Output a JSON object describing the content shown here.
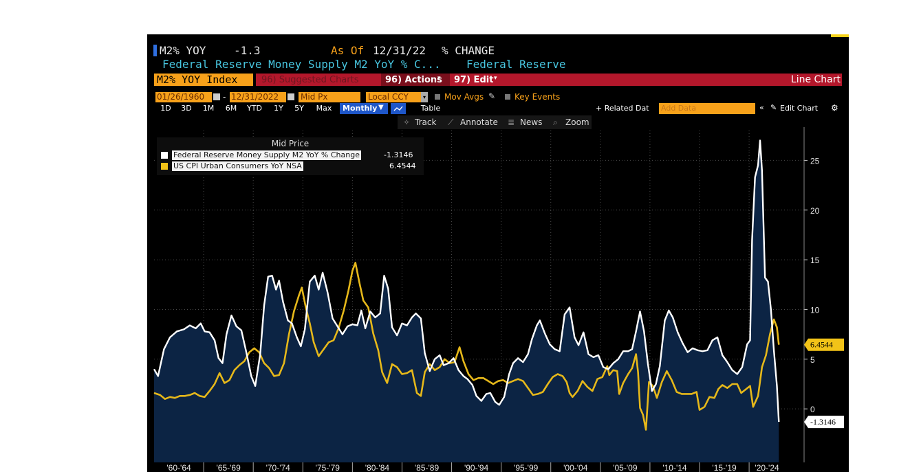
{
  "header": {
    "ticker": "M2% YOY",
    "value": "-1.3",
    "as_of_label": "As Of",
    "as_of_date": "12/31/22",
    "change_label": "% CHANGE",
    "description": "Federal Reserve Money Supply M2 YoY % C...",
    "source": "Federal Reserve"
  },
  "toolbar": {
    "index_field": "M2% YOY Index",
    "suggested_charts": "96) Suggested Charts",
    "actions": "96) Actions",
    "edit": "97) Edit",
    "chart_type": "Line Chart",
    "start_date": "01/26/1960",
    "end_date": "12/31/2022",
    "price_field": "Mid Px",
    "currency": "Local CCY",
    "mov_avgs": "Mov Avgs",
    "key_events": "Key Events",
    "periods": [
      "1D",
      "3D",
      "1M",
      "6M",
      "YTD",
      "1Y",
      "5Y",
      "Max"
    ],
    "frequency": "Monthly",
    "table": "Table",
    "related_data": "+ Related Dat",
    "add_data": "Add Data",
    "edit_chart": "Edit Chart",
    "track": "Track",
    "annotate": "Annotate",
    "news": "News",
    "zoom": "Zoom"
  },
  "legend": {
    "title": "Mid Price",
    "items": [
      {
        "label": "Federal Reserve Money Supply M2 YoY % Change",
        "value": "-1.3146",
        "color": "#ffffff"
      },
      {
        "label": "US CPI Urban Consumers YoY NSA",
        "value": "6.4544",
        "color": "#f2c318"
      }
    ]
  },
  "colors": {
    "background": "#000000",
    "area_fill": "#0c2444",
    "m2_line": "#ffffff",
    "cpi_line": "#e6b81a",
    "accent_orange": "#f7a11a",
    "accent_red": "#b3172b"
  },
  "chart_data": {
    "type": "line",
    "title": "Mid Price",
    "x_axis_labels": [
      "'60-'64",
      "'65-'69",
      "'70-'74",
      "'75-'79",
      "'80-'84",
      "'85-'89",
      "'90-'94",
      "'95-'99",
      "'00-'04",
      "'05-'09",
      "'10-'14",
      "'15-'19",
      "'20-'24"
    ],
    "y_ticks": [
      0,
      5,
      10,
      15,
      20,
      25
    ],
    "ylim": [
      -4,
      28
    ],
    "xlim": [
      1960.0,
      2023.6
    ],
    "grid": true,
    "last_value_labels": [
      "6.4544",
      "-1.3146"
    ],
    "series": [
      {
        "name": "Federal Reserve Money Supply M2 YoY % Change",
        "color": "#ffffff",
        "fill": true,
        "last_value": -1.3146,
        "points": [
          [
            1960.0,
            4.0
          ],
          [
            1960.4,
            3.3
          ],
          [
            1961.0,
            6.0
          ],
          [
            1961.6,
            7.2
          ],
          [
            1962.3,
            7.8
          ],
          [
            1963.0,
            8.0
          ],
          [
            1963.6,
            8.4
          ],
          [
            1964.2,
            8.1
          ],
          [
            1964.7,
            8.6
          ],
          [
            1965.1,
            7.8
          ],
          [
            1965.6,
            7.7
          ],
          [
            1966.1,
            6.9
          ],
          [
            1966.5,
            5.1
          ],
          [
            1966.9,
            4.6
          ],
          [
            1967.3,
            7.5
          ],
          [
            1967.8,
            9.4
          ],
          [
            1968.3,
            8.3
          ],
          [
            1968.8,
            7.9
          ],
          [
            1969.3,
            5.7
          ],
          [
            1969.8,
            3.3
          ],
          [
            1970.2,
            2.3
          ],
          [
            1970.7,
            5.5
          ],
          [
            1971.1,
            10.4
          ],
          [
            1971.5,
            13.3
          ],
          [
            1971.9,
            13.4
          ],
          [
            1972.3,
            12.0
          ],
          [
            1972.6,
            12.9
          ],
          [
            1973.0,
            10.8
          ],
          [
            1973.5,
            8.9
          ],
          [
            1973.9,
            8.6
          ],
          [
            1974.4,
            7.2
          ],
          [
            1974.8,
            6.3
          ],
          [
            1975.2,
            8.0
          ],
          [
            1975.7,
            12.8
          ],
          [
            1976.2,
            13.4
          ],
          [
            1976.6,
            12.0
          ],
          [
            1977.0,
            13.7
          ],
          [
            1977.5,
            11.7
          ],
          [
            1978.0,
            9.1
          ],
          [
            1978.5,
            8.3
          ],
          [
            1979.0,
            7.5
          ],
          [
            1979.5,
            8.3
          ],
          [
            1980.0,
            8.5
          ],
          [
            1980.5,
            8.4
          ],
          [
            1980.9,
            9.9
          ],
          [
            1981.3,
            8.1
          ],
          [
            1981.8,
            9.8
          ],
          [
            1982.3,
            9.2
          ],
          [
            1982.8,
            9.6
          ],
          [
            1983.2,
            13.4
          ],
          [
            1983.6,
            12.1
          ],
          [
            1984.0,
            8.2
          ],
          [
            1984.5,
            7.4
          ],
          [
            1985.0,
            8.6
          ],
          [
            1985.5,
            8.4
          ],
          [
            1986.0,
            9.2
          ],
          [
            1986.4,
            9.6
          ],
          [
            1986.9,
            9.1
          ],
          [
            1987.3,
            5.6
          ],
          [
            1987.8,
            3.8
          ],
          [
            1988.3,
            5.0
          ],
          [
            1988.8,
            5.4
          ],
          [
            1989.2,
            4.4
          ],
          [
            1989.7,
            4.6
          ],
          [
            1990.2,
            5.1
          ],
          [
            1990.7,
            3.9
          ],
          [
            1991.2,
            3.3
          ],
          [
            1991.6,
            3.0
          ],
          [
            1992.1,
            2.4
          ],
          [
            1992.5,
            1.3
          ],
          [
            1993.0,
            0.8
          ],
          [
            1993.5,
            1.5
          ],
          [
            1993.9,
            1.6
          ],
          [
            1994.4,
            0.7
          ],
          [
            1994.8,
            0.4
          ],
          [
            1995.3,
            1.2
          ],
          [
            1995.8,
            3.5
          ],
          [
            1996.2,
            4.6
          ],
          [
            1996.7,
            5.1
          ],
          [
            1997.2,
            4.7
          ],
          [
            1997.7,
            5.5
          ],
          [
            1998.1,
            7.0
          ],
          [
            1998.6,
            8.4
          ],
          [
            1998.9,
            8.9
          ],
          [
            1999.4,
            7.6
          ],
          [
            1999.9,
            6.5
          ],
          [
            2000.4,
            6.0
          ],
          [
            2000.9,
            5.8
          ],
          [
            2001.4,
            9.5
          ],
          [
            2001.9,
            10.2
          ],
          [
            2002.4,
            7.2
          ],
          [
            2002.8,
            6.4
          ],
          [
            2003.3,
            7.7
          ],
          [
            2003.8,
            5.5
          ],
          [
            2004.3,
            5.2
          ],
          [
            2004.8,
            5.4
          ],
          [
            2005.3,
            4.2
          ],
          [
            2005.8,
            4.0
          ],
          [
            2006.3,
            4.6
          ],
          [
            2006.8,
            5.0
          ],
          [
            2007.3,
            5.8
          ],
          [
            2007.8,
            5.8
          ],
          [
            2008.2,
            6.0
          ],
          [
            2008.6,
            7.8
          ],
          [
            2009.0,
            9.8
          ],
          [
            2009.4,
            7.8
          ],
          [
            2009.8,
            4.5
          ],
          [
            2010.2,
            1.8
          ],
          [
            2010.6,
            2.5
          ],
          [
            2011.0,
            4.3
          ],
          [
            2011.5,
            8.9
          ],
          [
            2011.9,
            9.9
          ],
          [
            2012.3,
            9.2
          ],
          [
            2012.8,
            7.7
          ],
          [
            2013.3,
            6.6
          ],
          [
            2013.8,
            5.7
          ],
          [
            2014.3,
            6.1
          ],
          [
            2014.8,
            5.9
          ],
          [
            2015.3,
            5.8
          ],
          [
            2015.8,
            5.9
          ],
          [
            2016.3,
            6.9
          ],
          [
            2016.8,
            7.2
          ],
          [
            2017.3,
            5.4
          ],
          [
            2017.8,
            4.7
          ],
          [
            2018.3,
            3.9
          ],
          [
            2018.8,
            3.5
          ],
          [
            2019.3,
            4.2
          ],
          [
            2019.8,
            6.5
          ],
          [
            2020.1,
            6.9
          ],
          [
            2020.3,
            17.0
          ],
          [
            2020.6,
            23.3
          ],
          [
            2020.9,
            24.5
          ],
          [
            2021.1,
            27.0
          ],
          [
            2021.3,
            24.0
          ],
          [
            2021.6,
            13.2
          ],
          [
            2021.9,
            12.8
          ],
          [
            2022.2,
            10.0
          ],
          [
            2022.5,
            5.9
          ],
          [
            2022.8,
            2.3
          ],
          [
            2023.0,
            -1.3146
          ]
        ]
      },
      {
        "name": "US CPI Urban Consumers YoY NSA",
        "color": "#e6b81a",
        "fill": false,
        "last_value": 6.4544,
        "points": [
          [
            1960.0,
            1.6
          ],
          [
            1960.6,
            1.4
          ],
          [
            1961.1,
            1.0
          ],
          [
            1961.6,
            1.2
          ],
          [
            1962.1,
            1.1
          ],
          [
            1962.6,
            1.3
          ],
          [
            1963.1,
            1.3
          ],
          [
            1963.6,
            1.4
          ],
          [
            1964.1,
            1.6
          ],
          [
            1964.6,
            1.3
          ],
          [
            1965.1,
            1.2
          ],
          [
            1965.6,
            1.8
          ],
          [
            1966.1,
            2.5
          ],
          [
            1966.6,
            3.6
          ],
          [
            1967.1,
            2.6
          ],
          [
            1967.6,
            2.9
          ],
          [
            1968.1,
            3.9
          ],
          [
            1968.6,
            4.4
          ],
          [
            1969.1,
            4.8
          ],
          [
            1969.6,
            5.7
          ],
          [
            1970.1,
            6.1
          ],
          [
            1970.6,
            5.7
          ],
          [
            1971.1,
            4.6
          ],
          [
            1971.6,
            4.1
          ],
          [
            1972.1,
            3.3
          ],
          [
            1972.6,
            3.4
          ],
          [
            1973.1,
            4.6
          ],
          [
            1973.6,
            7.5
          ],
          [
            1974.1,
            9.8
          ],
          [
            1974.6,
            11.4
          ],
          [
            1974.9,
            12.2
          ],
          [
            1975.3,
            10.2
          ],
          [
            1975.7,
            8.6
          ],
          [
            1976.1,
            6.7
          ],
          [
            1976.6,
            5.3
          ],
          [
            1977.1,
            6.0
          ],
          [
            1977.6,
            6.7
          ],
          [
            1978.1,
            6.9
          ],
          [
            1978.6,
            8.1
          ],
          [
            1979.1,
            9.8
          ],
          [
            1979.6,
            11.9
          ],
          [
            1980.0,
            13.9
          ],
          [
            1980.3,
            14.7
          ],
          [
            1980.7,
            12.7
          ],
          [
            1981.1,
            10.9
          ],
          [
            1981.6,
            10.2
          ],
          [
            1982.1,
            7.6
          ],
          [
            1982.6,
            5.9
          ],
          [
            1983.0,
            3.7
          ],
          [
            1983.5,
            2.6
          ],
          [
            1984.0,
            4.5
          ],
          [
            1984.5,
            4.2
          ],
          [
            1985.0,
            3.5
          ],
          [
            1985.5,
            3.6
          ],
          [
            1986.0,
            3.9
          ],
          [
            1986.5,
            1.6
          ],
          [
            1986.9,
            1.3
          ],
          [
            1987.3,
            3.7
          ],
          [
            1987.8,
            4.5
          ],
          [
            1988.3,
            3.9
          ],
          [
            1988.8,
            4.2
          ],
          [
            1989.3,
            5.0
          ],
          [
            1989.8,
            4.6
          ],
          [
            1990.3,
            4.7
          ],
          [
            1990.8,
            6.2
          ],
          [
            1991.2,
            4.8
          ],
          [
            1991.7,
            3.5
          ],
          [
            1992.2,
            2.9
          ],
          [
            1992.7,
            3.1
          ],
          [
            1993.2,
            3.1
          ],
          [
            1993.7,
            2.8
          ],
          [
            1994.2,
            2.5
          ],
          [
            1994.7,
            2.8
          ],
          [
            1995.2,
            2.9
          ],
          [
            1995.7,
            2.6
          ],
          [
            1996.2,
            2.8
          ],
          [
            1996.7,
            3.0
          ],
          [
            1997.2,
            2.8
          ],
          [
            1997.7,
            2.1
          ],
          [
            1998.2,
            1.4
          ],
          [
            1998.7,
            1.5
          ],
          [
            1999.2,
            1.7
          ],
          [
            1999.7,
            2.5
          ],
          [
            2000.2,
            3.2
          ],
          [
            2000.7,
            3.5
          ],
          [
            2001.2,
            3.3
          ],
          [
            2001.6,
            2.7
          ],
          [
            2001.9,
            1.6
          ],
          [
            2002.2,
            1.2
          ],
          [
            2002.7,
            1.8
          ],
          [
            2003.2,
            2.8
          ],
          [
            2003.7,
            2.2
          ],
          [
            2004.2,
            1.8
          ],
          [
            2004.7,
            3.0
          ],
          [
            2005.2,
            3.2
          ],
          [
            2005.7,
            4.3
          ],
          [
            2005.9,
            3.4
          ],
          [
            2006.3,
            3.9
          ],
          [
            2006.7,
            3.8
          ],
          [
            2006.9,
            1.5
          ],
          [
            2007.3,
            2.6
          ],
          [
            2007.8,
            3.5
          ],
          [
            2008.2,
            4.1
          ],
          [
            2008.6,
            5.5
          ],
          [
            2008.8,
            3.7
          ],
          [
            2009.0,
            0.1
          ],
          [
            2009.3,
            -0.6
          ],
          [
            2009.6,
            -2.1
          ],
          [
            2009.9,
            2.7
          ],
          [
            2010.3,
            2.3
          ],
          [
            2010.7,
            1.1
          ],
          [
            2011.2,
            2.7
          ],
          [
            2011.7,
            3.8
          ],
          [
            2012.2,
            2.9
          ],
          [
            2012.7,
            1.7
          ],
          [
            2013.2,
            1.5
          ],
          [
            2013.7,
            1.5
          ],
          [
            2014.2,
            1.5
          ],
          [
            2014.7,
            1.7
          ],
          [
            2015.0,
            -0.1
          ],
          [
            2015.5,
            0.2
          ],
          [
            2016.0,
            1.2
          ],
          [
            2016.5,
            1.1
          ],
          [
            2016.9,
            2.0
          ],
          [
            2017.3,
            2.4
          ],
          [
            2017.8,
            2.1
          ],
          [
            2018.3,
            2.5
          ],
          [
            2018.8,
            2.5
          ],
          [
            2019.2,
            1.6
          ],
          [
            2019.7,
            2.0
          ],
          [
            2020.1,
            2.3
          ],
          [
            2020.4,
            0.2
          ],
          [
            2020.9,
            1.3
          ],
          [
            2021.3,
            4.2
          ],
          [
            2021.7,
            5.4
          ],
          [
            2022.1,
            7.5
          ],
          [
            2022.5,
            9.0
          ],
          [
            2022.8,
            8.2
          ],
          [
            2023.0,
            6.4544
          ]
        ]
      }
    ]
  }
}
